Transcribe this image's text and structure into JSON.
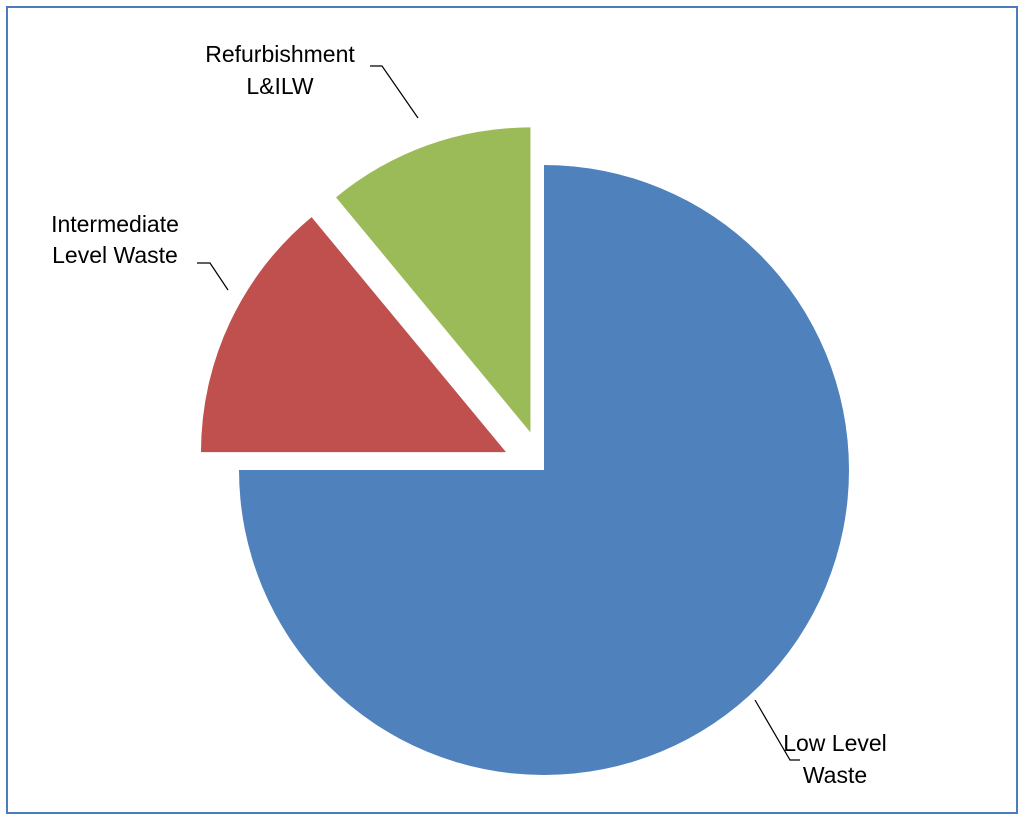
{
  "chart_data": {
    "type": "pie",
    "title": "",
    "exploded": true,
    "slices": [
      {
        "label": [
          "Low Level",
          "Waste"
        ],
        "value": 75,
        "color": "#4f81bd"
      },
      {
        "label": [
          "Intermediate",
          "Level Waste"
        ],
        "value": 14,
        "color": "#c0504d"
      },
      {
        "label": [
          "Refurbishment",
          "L&ILW"
        ],
        "value": 11,
        "color": "#9bbb59"
      }
    ]
  }
}
